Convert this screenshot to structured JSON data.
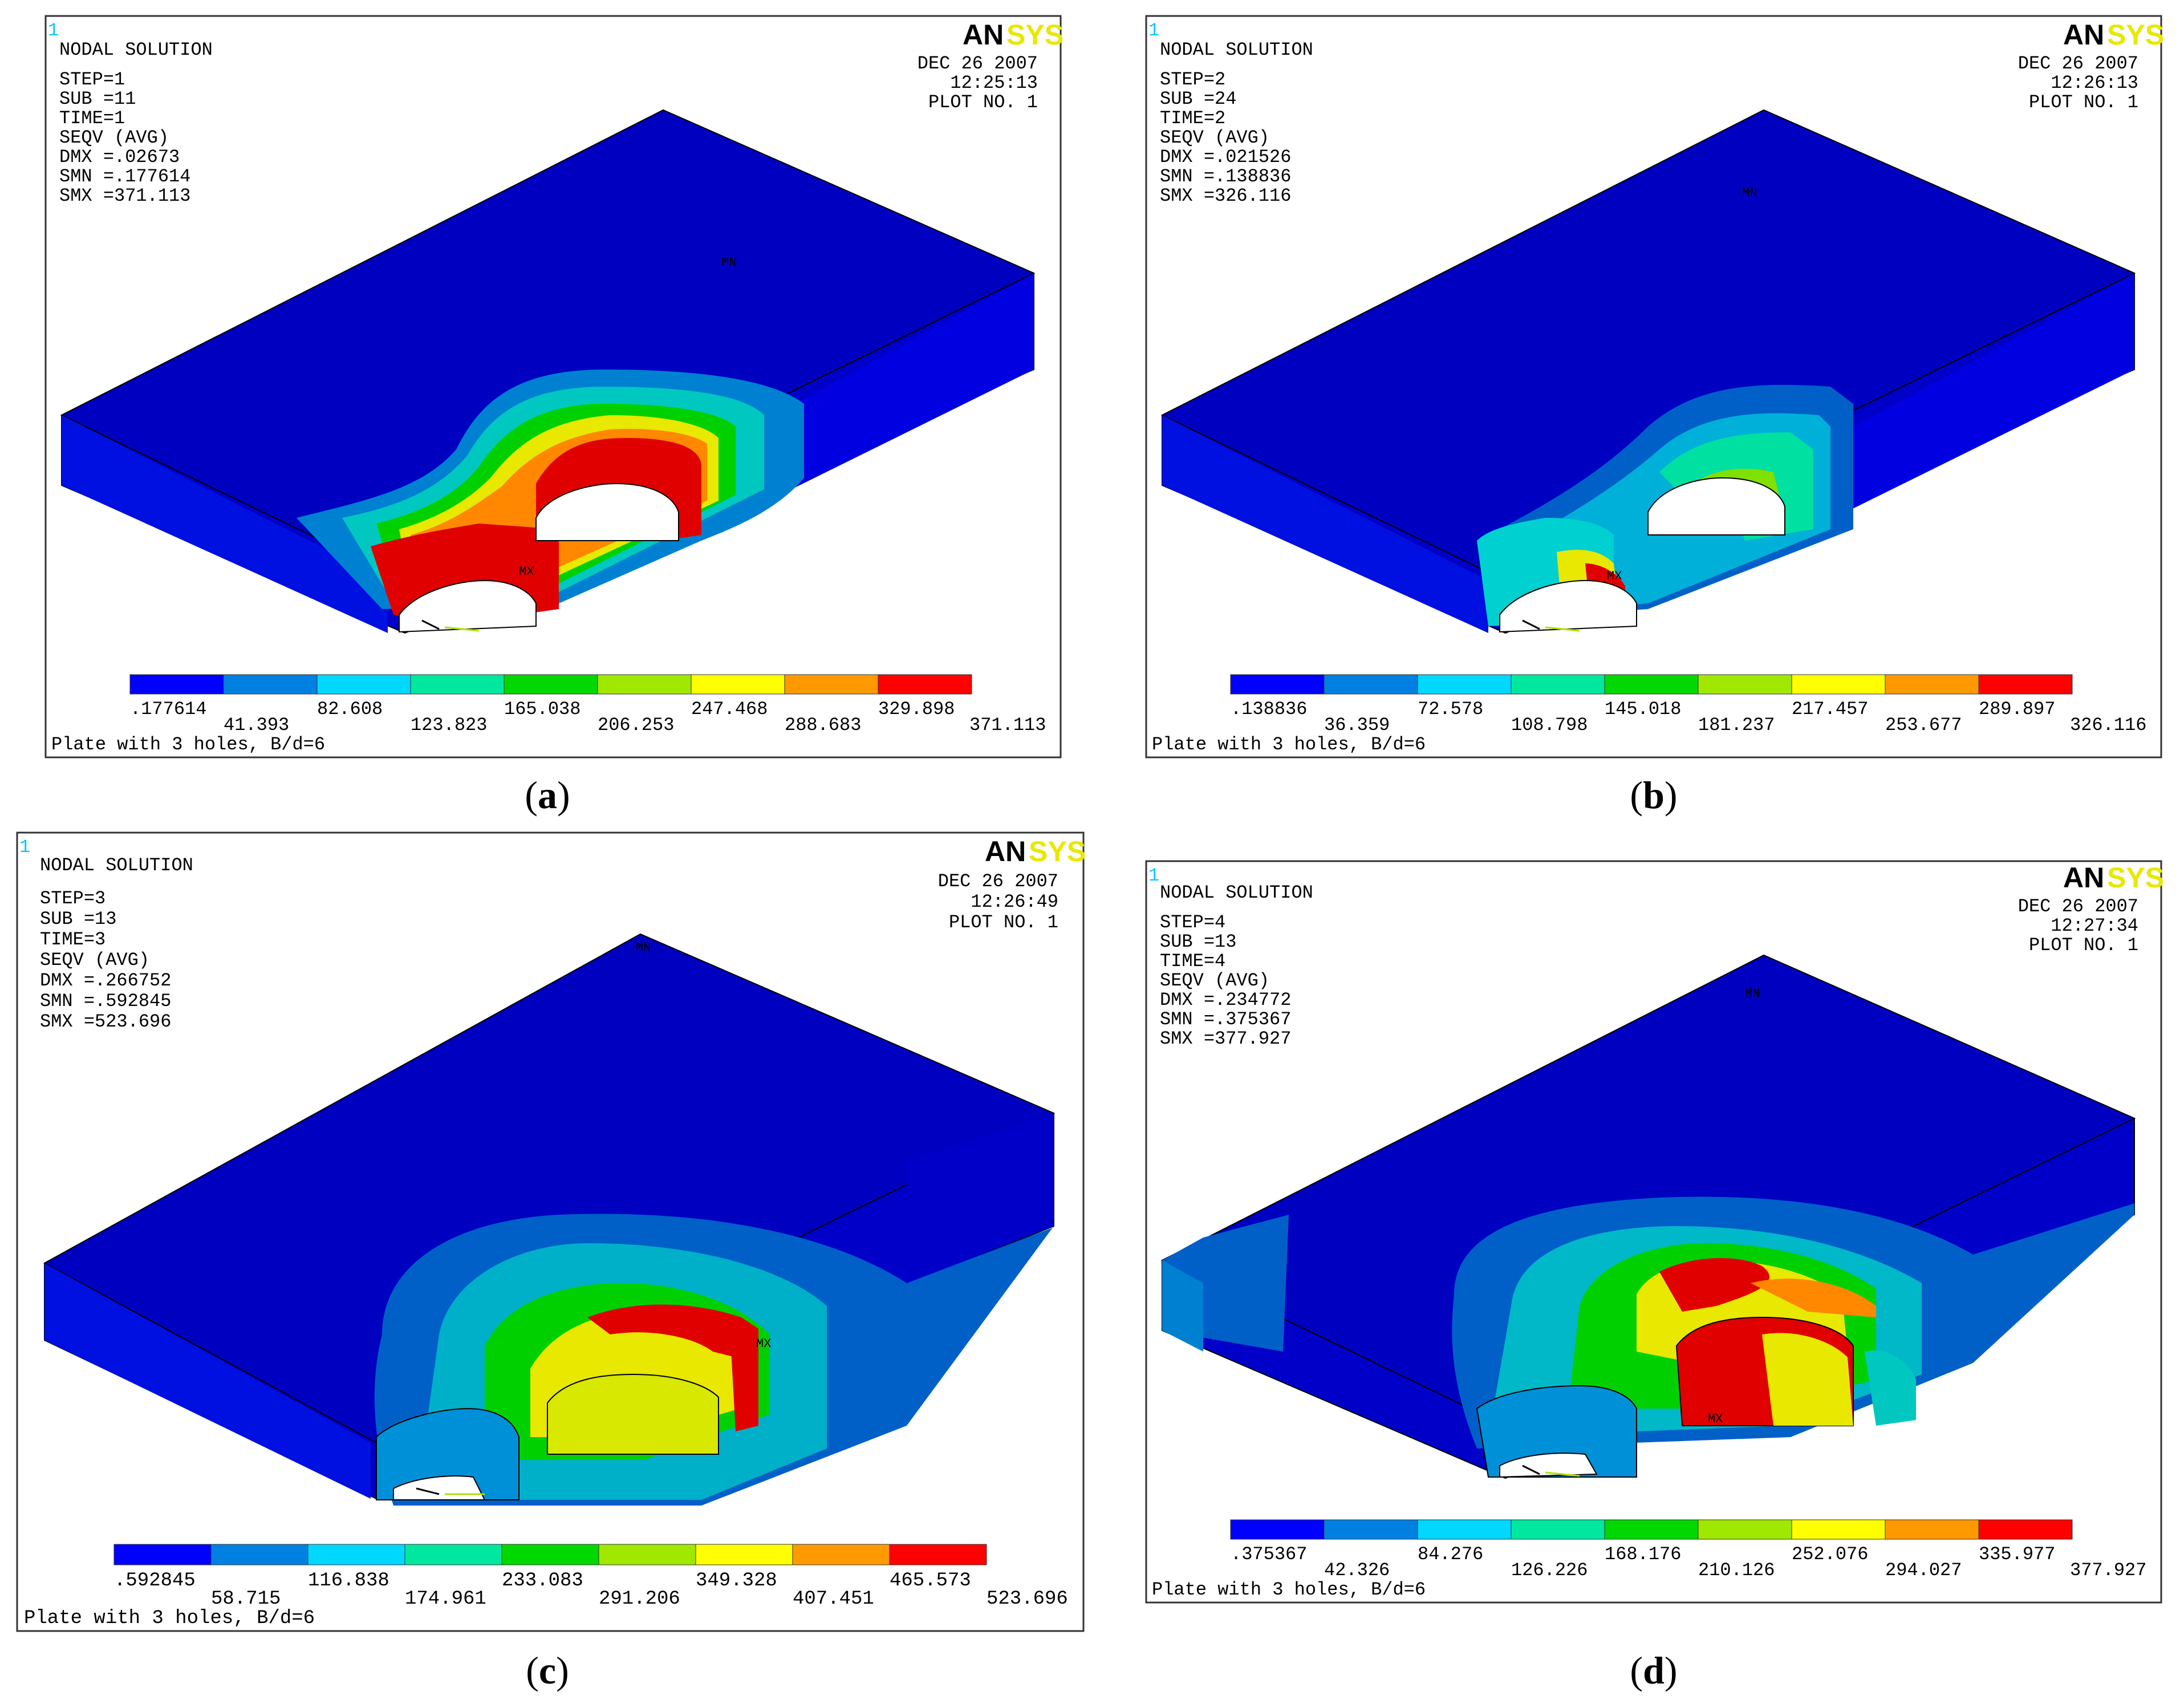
{
  "brand": {
    "an": "AN",
    "sys": "SYS"
  },
  "legend_colors": [
    "#0000ff",
    "#0080e0",
    "#00d8ff",
    "#00e8a0",
    "#00d800",
    "#a0e800",
    "#ffff00",
    "#ff9900",
    "#ff0000"
  ],
  "panels": [
    {
      "id": "a",
      "caption": "a",
      "window_number": "1",
      "header": [
        "NODAL SOLUTION",
        "STEP=1",
        "SUB =11",
        "TIME=1",
        "SEQV      (AVG)",
        "DMX =.02673",
        "SMN =.177614",
        "SMX =371.113"
      ],
      "date": "DEC 26 2007",
      "time": "12:25:13",
      "plot_no": "PLOT NO.   1",
      "mn_label": "MN",
      "mx_label": "MX",
      "footer": "Plate with 3 holes, B/d=6",
      "legend_top": [
        ".177614",
        "82.608",
        "165.038",
        "247.468",
        "329.898"
      ],
      "legend_bottom": [
        "41.393",
        "123.823",
        "206.253",
        "288.683",
        "371.113"
      ]
    },
    {
      "id": "b",
      "caption": "b",
      "window_number": "1",
      "header": [
        "NODAL SOLUTION",
        "STEP=2",
        "SUB =24",
        "TIME=2",
        "SEQV      (AVG)",
        "DMX =.021526",
        "SMN =.138836",
        "SMX =326.116"
      ],
      "date": "DEC 26 2007",
      "time": "12:26:13",
      "plot_no": "PLOT NO.   1",
      "mn_label": "MN",
      "mx_label": "MX",
      "footer": "Plate with 3 holes, B/d=6",
      "legend_top": [
        ".138836",
        "72.578",
        "145.018",
        "217.457",
        "289.897"
      ],
      "legend_bottom": [
        "36.359",
        "108.798",
        "181.237",
        "253.677",
        "326.116"
      ]
    },
    {
      "id": "c",
      "caption": "c",
      "window_number": "1",
      "header": [
        "NODAL SOLUTION",
        "STEP=3",
        "SUB =13",
        "TIME=3",
        "SEQV      (AVG)",
        "DMX =.266752",
        "SMN =.592845",
        "SMX =523.696"
      ],
      "date": "DEC 26 2007",
      "time": "12:26:49",
      "plot_no": "PLOT NO.   1",
      "mn_label": "MN",
      "mx_label": "MX",
      "footer": "Plate with 3 holes, B/d=6",
      "legend_top": [
        ".592845",
        "116.838",
        "233.083",
        "349.328",
        "465.573"
      ],
      "legend_bottom": [
        "58.715",
        "174.961",
        "291.206",
        "407.451",
        "523.696"
      ]
    },
    {
      "id": "d",
      "caption": "d",
      "window_number": "1",
      "header": [
        "NODAL SOLUTION",
        "STEP=4",
        "SUB =13",
        "TIME=4",
        "SEQV      (AVG)",
        "DMX =.234772",
        "SMN =.375367",
        "SMX =377.927"
      ],
      "date": "DEC 26 2007",
      "time": "12:27:34",
      "plot_no": "PLOT NO.   1",
      "mn_label": "MN",
      "mx_label": "MX",
      "footer": "Plate with 3 holes, B/d=6",
      "legend_top": [
        ".375367",
        "84.276",
        "168.176",
        "252.076",
        "335.977"
      ],
      "legend_bottom": [
        "42.326",
        "126.226",
        "210.126",
        "294.027",
        "377.927"
      ]
    }
  ]
}
